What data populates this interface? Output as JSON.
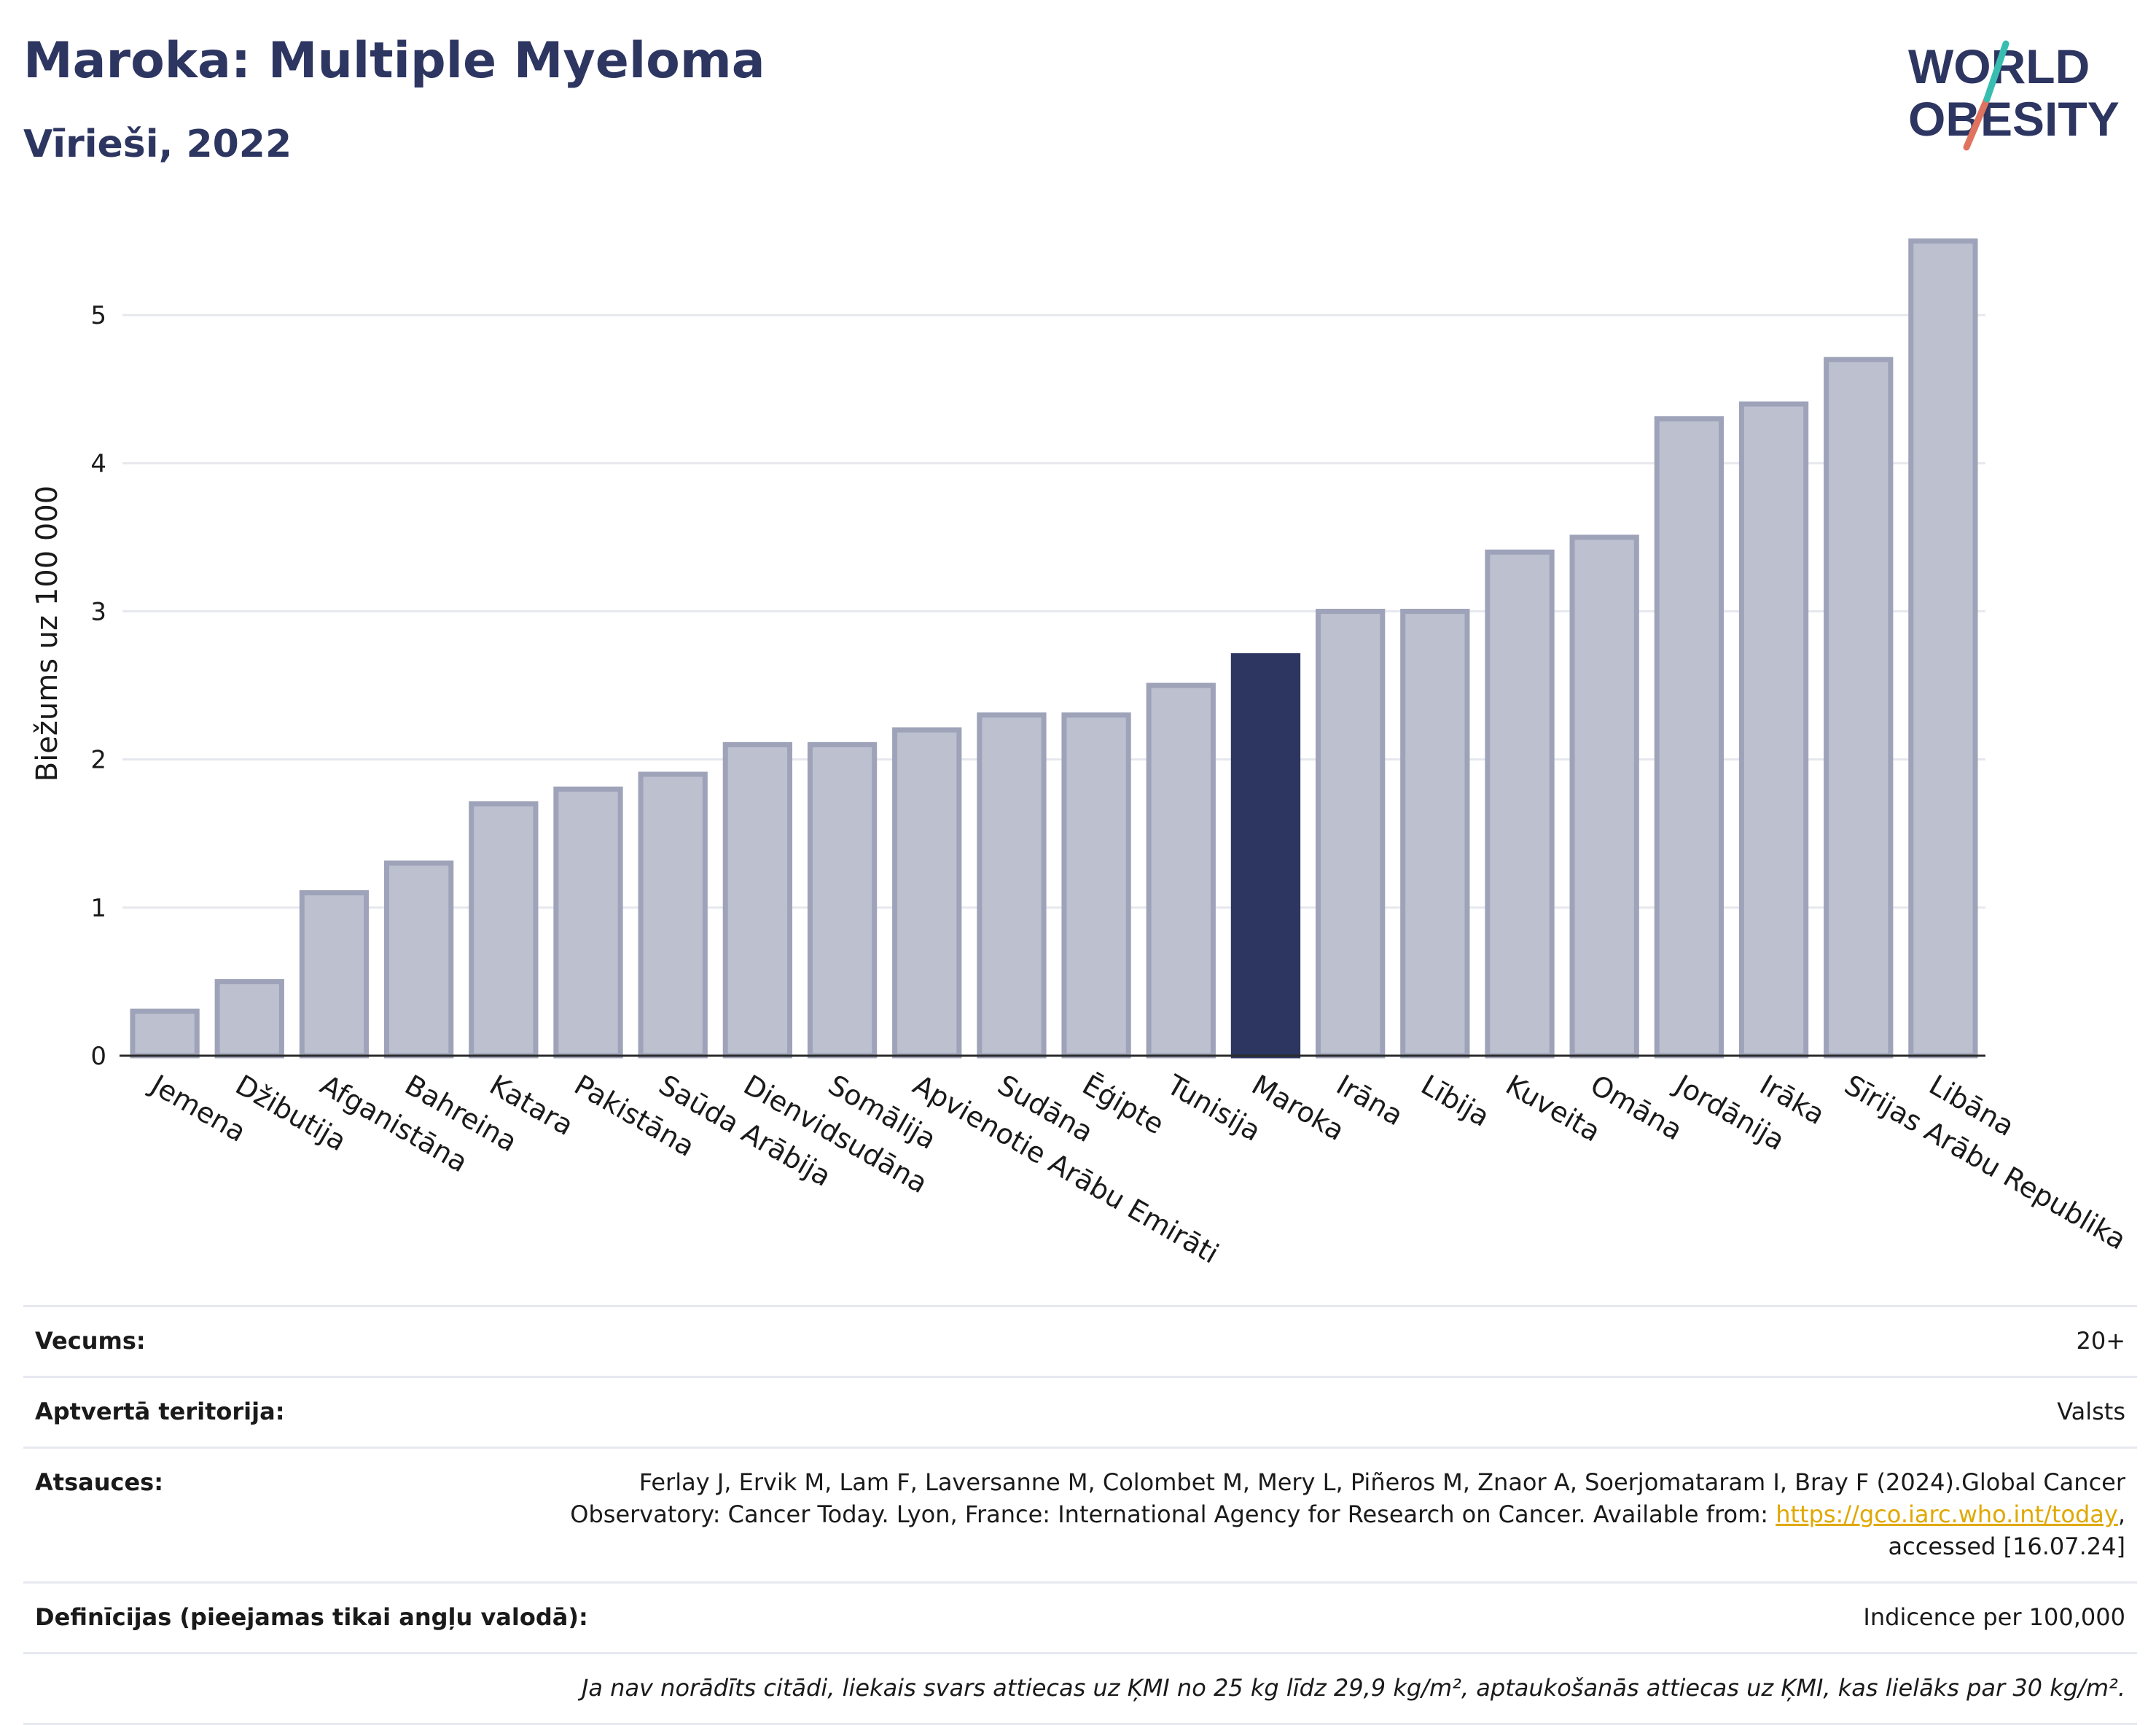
{
  "header": {
    "title": "Maroka: Multiple Myeloma",
    "subtitle": "Vīrieši, 2022"
  },
  "logo": {
    "line1": "WORLD",
    "line2": "OBESITY"
  },
  "chart_data": {
    "type": "bar",
    "ylabel": "Biežums uz 100 000",
    "xlabel": "",
    "ylim": [
      0,
      5.7
    ],
    "yticks": [
      0,
      1,
      2,
      3,
      4,
      5
    ],
    "grid": true,
    "highlight_category": "Maroka",
    "colors": {
      "bar": "#bcc0cf",
      "bar_edge": "#9ea3b9",
      "highlight": "#2d3561",
      "grid": "#e6e8ee"
    },
    "categories": [
      "Jemena",
      "Džibutija",
      "Afganistāna",
      "Bahreina",
      "Katara",
      "Pakistāna",
      "Saūda Arābija",
      "Dienvidsudāna",
      "Somālija",
      "Apvienotie Arābu Emirāti",
      "Sudāna",
      "Ēģipte",
      "Tunisija",
      "Maroka",
      "Irāna",
      "Lībija",
      "Kuveita",
      "Omāna",
      "Jordānija",
      "Irāka",
      "Sīrijas Arābu Republika",
      "Libāna"
    ],
    "values": [
      0.3,
      0.5,
      1.1,
      1.3,
      1.7,
      1.8,
      1.9,
      2.1,
      2.1,
      2.2,
      2.3,
      2.3,
      2.5,
      2.7,
      3.0,
      3.0,
      3.4,
      3.5,
      4.3,
      4.4,
      4.7,
      5.5
    ]
  },
  "info": {
    "age_label": "Vecums:",
    "age_value": "20+",
    "territory_label": "Aptvertā teritorija:",
    "territory_value": "Valsts",
    "refs_label": "Atsauces:",
    "refs_text1": "Ferlay J, Ervik M, Lam F, Laversanne M, Colombet M, Mery L, Piñeros M, Znaor A, Soerjomataram I, Bray F (2024).Global Cancer Observatory: Cancer Today. Lyon, France: International Agency for Research on Cancer. Available from: ",
    "refs_link": "https://gco.iarc.who.int/today",
    "refs_text2": ", accessed [16.07.24]",
    "def_label": "Definīcijas (pieejamas tikai angļu valodā):",
    "def_value": "Indicence per 100,000",
    "note": "Ja nav norādīts citādi, liekais svars attiecas uz ĶMI no 25 kg līdz 29,9 kg/m², aptaukošanās attiecas uz ĶMI, kas lielāks par 30 kg/m²."
  }
}
